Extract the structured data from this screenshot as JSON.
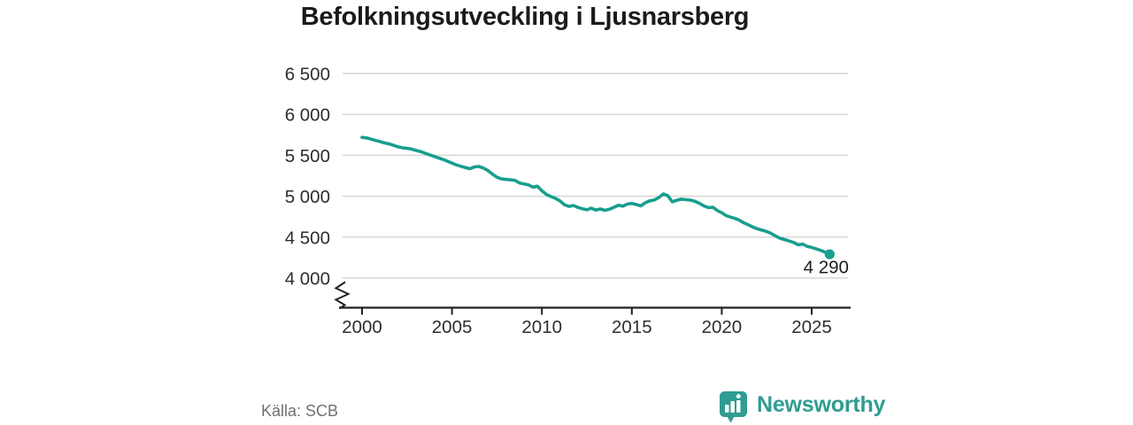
{
  "title": "Befolkningsutveckling i Ljusnarsberg",
  "source": {
    "label": "Källa: SCB"
  },
  "branding": {
    "name": "Newsworthy"
  },
  "colors": {
    "line": "#189e8e",
    "brand": "#2f9c92",
    "grid": "#d7d7d7",
    "axis": "#222222",
    "tick_label": "#2e2e2e",
    "end_label": "#1c1c1c",
    "background": "#ffffff"
  },
  "chart_data": {
    "type": "line",
    "title": "Befolkningsutveckling i Ljusnarsberg",
    "grid": true,
    "legend": "none",
    "axis_break": true,
    "xlim": [
      1999,
      2027
    ],
    "ylim": [
      4000,
      6500
    ],
    "x_ticks": [
      2000,
      2005,
      2010,
      2015,
      2020,
      2025
    ],
    "x_tick_labels": [
      "2000",
      "2005",
      "2010",
      "2015",
      "2020",
      "2025"
    ],
    "y_ticks": [
      4000,
      4500,
      5000,
      5500,
      6000,
      6500
    ],
    "y_tick_labels": [
      "4 000",
      "4 500",
      "5 000",
      "5 500",
      "6 000",
      "6 500"
    ],
    "end_point": {
      "year": 2026,
      "value": 4290,
      "label": "4 290"
    },
    "series": [
      {
        "points": [
          [
            2000.0,
            5720
          ],
          [
            2000.25,
            5712
          ],
          [
            2000.5,
            5698
          ],
          [
            2000.75,
            5682
          ],
          [
            2001.0,
            5668
          ],
          [
            2001.25,
            5652
          ],
          [
            2001.5,
            5640
          ],
          [
            2001.75,
            5622
          ],
          [
            2002.0,
            5604
          ],
          [
            2002.25,
            5592
          ],
          [
            2002.5,
            5585
          ],
          [
            2002.75,
            5576
          ],
          [
            2003.0,
            5560
          ],
          [
            2003.25,
            5546
          ],
          [
            2003.5,
            5526
          ],
          [
            2003.75,
            5506
          ],
          [
            2004.0,
            5487
          ],
          [
            2004.25,
            5467
          ],
          [
            2004.5,
            5450
          ],
          [
            2004.75,
            5428
          ],
          [
            2005.0,
            5405
          ],
          [
            2005.25,
            5382
          ],
          [
            2005.5,
            5366
          ],
          [
            2005.75,
            5350
          ],
          [
            2006.0,
            5336
          ],
          [
            2006.25,
            5358
          ],
          [
            2006.5,
            5364
          ],
          [
            2006.75,
            5344
          ],
          [
            2007.0,
            5314
          ],
          [
            2007.25,
            5270
          ],
          [
            2007.5,
            5232
          ],
          [
            2007.75,
            5212
          ],
          [
            2008.0,
            5206
          ],
          [
            2008.25,
            5200
          ],
          [
            2008.5,
            5194
          ],
          [
            2008.75,
            5162
          ],
          [
            2009.0,
            5150
          ],
          [
            2009.25,
            5138
          ],
          [
            2009.5,
            5112
          ],
          [
            2009.75,
            5122
          ],
          [
            2010.0,
            5066
          ],
          [
            2010.25,
            5022
          ],
          [
            2010.5,
            4996
          ],
          [
            2010.75,
            4974
          ],
          [
            2011.0,
            4944
          ],
          [
            2011.25,
            4896
          ],
          [
            2011.5,
            4876
          ],
          [
            2011.75,
            4886
          ],
          [
            2012.0,
            4864
          ],
          [
            2012.25,
            4846
          ],
          [
            2012.5,
            4834
          ],
          [
            2012.75,
            4854
          ],
          [
            2013.0,
            4830
          ],
          [
            2013.25,
            4844
          ],
          [
            2013.5,
            4828
          ],
          [
            2013.75,
            4840
          ],
          [
            2014.0,
            4864
          ],
          [
            2014.25,
            4890
          ],
          [
            2014.5,
            4878
          ],
          [
            2014.75,
            4904
          ],
          [
            2015.0,
            4912
          ],
          [
            2015.25,
            4898
          ],
          [
            2015.5,
            4882
          ],
          [
            2015.75,
            4920
          ],
          [
            2016.0,
            4944
          ],
          [
            2016.25,
            4954
          ],
          [
            2016.5,
            4984
          ],
          [
            2016.75,
            5028
          ],
          [
            2017.0,
            5008
          ],
          [
            2017.25,
            4932
          ],
          [
            2017.5,
            4950
          ],
          [
            2017.75,
            4964
          ],
          [
            2018.0,
            4958
          ],
          [
            2018.25,
            4952
          ],
          [
            2018.5,
            4938
          ],
          [
            2018.75,
            4914
          ],
          [
            2019.0,
            4882
          ],
          [
            2019.25,
            4860
          ],
          [
            2019.5,
            4866
          ],
          [
            2019.75,
            4826
          ],
          [
            2020.0,
            4798
          ],
          [
            2020.25,
            4762
          ],
          [
            2020.5,
            4744
          ],
          [
            2020.75,
            4728
          ],
          [
            2021.0,
            4704
          ],
          [
            2021.25,
            4672
          ],
          [
            2021.5,
            4648
          ],
          [
            2021.75,
            4620
          ],
          [
            2022.0,
            4600
          ],
          [
            2022.25,
            4584
          ],
          [
            2022.5,
            4568
          ],
          [
            2022.75,
            4544
          ],
          [
            2023.0,
            4512
          ],
          [
            2023.25,
            4486
          ],
          [
            2023.5,
            4470
          ],
          [
            2023.75,
            4452
          ],
          [
            2024.0,
            4434
          ],
          [
            2024.25,
            4406
          ],
          [
            2024.5,
            4414
          ],
          [
            2024.75,
            4386
          ],
          [
            2025.0,
            4374
          ],
          [
            2025.25,
            4356
          ],
          [
            2025.5,
            4338
          ],
          [
            2025.75,
            4316
          ],
          [
            2026.0,
            4290
          ]
        ]
      }
    ]
  }
}
